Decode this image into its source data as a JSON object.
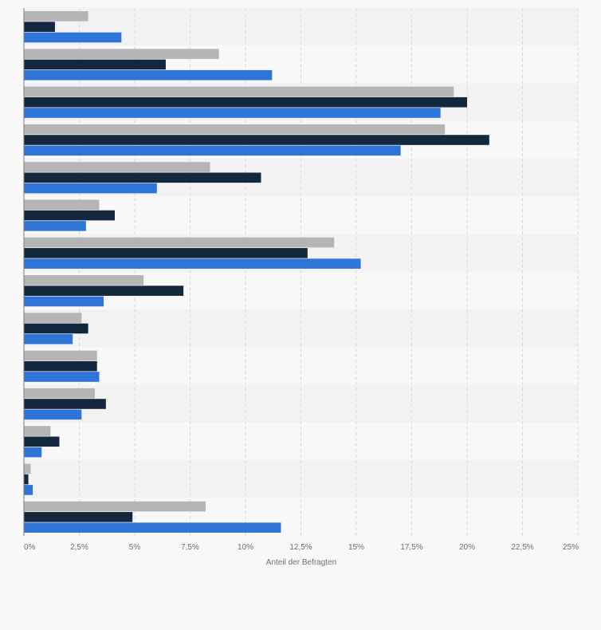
{
  "chart_data": {
    "type": "bar",
    "orientation": "horizontal",
    "xlabel": "Anteil der Befragten",
    "xlim": [
      0,
      25
    ],
    "x_ticks": [
      "0%",
      "2,5%",
      "5%",
      "7,5%",
      "10%",
      "12,5%",
      "15%",
      "17,5%",
      "20%",
      "22,5%",
      "25%"
    ],
    "grid": true,
    "legend": "none",
    "category_count": 14,
    "series": [
      {
        "color": "#b5b5b5",
        "values": [
          2.9,
          8.8,
          19.4,
          19.0,
          8.4,
          3.4,
          14.0,
          5.4,
          2.6,
          3.3,
          3.2,
          1.2,
          0.3,
          8.2
        ]
      },
      {
        "color": "#13273e",
        "values": [
          1.4,
          6.4,
          20.0,
          21.0,
          10.7,
          4.1,
          12.8,
          7.2,
          2.9,
          3.3,
          3.7,
          1.6,
          0.2,
          4.9
        ]
      },
      {
        "color": "#2f75d8",
        "values": [
          4.4,
          11.2,
          18.8,
          17.0,
          6.0,
          2.8,
          15.2,
          3.6,
          2.2,
          3.4,
          2.6,
          0.8,
          0.4,
          11.6
        ]
      }
    ]
  },
  "colors": {
    "band_dark": "#f2f2f2",
    "band_light": "#f8f8f8",
    "grid": "#d9d9d9",
    "axis": "#7a7a7a"
  }
}
